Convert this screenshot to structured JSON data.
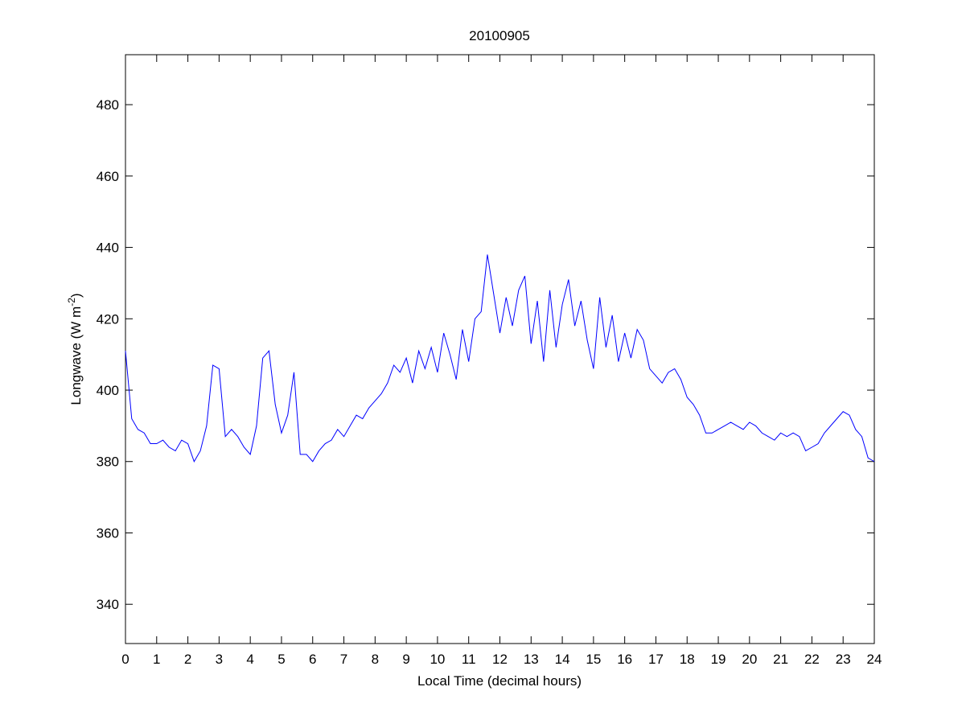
{
  "chart_data": {
    "type": "line",
    "title": "20100905",
    "xlabel": "Local Time (decimal hours)",
    "ylabel": [
      "Longwave (W m",
      "-2",
      ")"
    ],
    "x": [
      0,
      0.2,
      0.4,
      0.6,
      0.8,
      1,
      1.2,
      1.4,
      1.6,
      1.8,
      2,
      2.2,
      2.4,
      2.6,
      2.8,
      3,
      3.2,
      3.4,
      3.6,
      3.8,
      4,
      4.2,
      4.4,
      4.6,
      4.8,
      5,
      5.2,
      5.4,
      5.6,
      5.8,
      6,
      6.2,
      6.4,
      6.6,
      6.8,
      7,
      7.2,
      7.4,
      7.6,
      7.8,
      8,
      8.2,
      8.4,
      8.6,
      8.8,
      9,
      9.2,
      9.4,
      9.6,
      9.8,
      10,
      10.2,
      10.4,
      10.6,
      10.8,
      11,
      11.2,
      11.4,
      11.6,
      11.8,
      12,
      12.2,
      12.4,
      12.6,
      12.8,
      13,
      13.2,
      13.4,
      13.6,
      13.8,
      14,
      14.2,
      14.4,
      14.6,
      14.8,
      15,
      15.2,
      15.4,
      15.6,
      15.8,
      16,
      16.2,
      16.4,
      16.6,
      16.8,
      17,
      17.2,
      17.4,
      17.6,
      17.8,
      18,
      18.2,
      18.4,
      18.6,
      18.8,
      19,
      19.2,
      19.4,
      19.6,
      19.8,
      20,
      20.2,
      20.4,
      20.6,
      20.8,
      21,
      21.2,
      21.4,
      21.6,
      21.8,
      22,
      22.2,
      22.4,
      22.6,
      22.8,
      23,
      23.2,
      23.4,
      23.6,
      23.8,
      24
    ],
    "series": [
      {
        "name": "Longwave",
        "color": "#0000ff",
        "values": [
          411,
          392,
          389,
          388,
          385,
          385,
          386,
          384,
          383,
          386,
          385,
          380,
          383,
          390,
          407,
          406,
          387,
          389,
          387,
          384,
          382,
          390,
          409,
          411,
          396,
          388,
          393,
          405,
          382,
          382,
          380,
          383,
          385,
          386,
          389,
          387,
          390,
          393,
          392,
          395,
          397,
          399,
          402,
          407,
          405,
          409,
          402,
          411,
          406,
          412,
          405,
          416,
          410,
          403,
          417,
          408,
          420,
          422,
          438,
          427,
          416,
          426,
          418,
          428,
          432,
          413,
          425,
          408,
          428,
          412,
          424,
          431,
          418,
          425,
          414,
          406,
          426,
          412,
          421,
          408,
          416,
          409,
          417,
          414,
          406,
          404,
          402,
          405,
          406,
          403,
          398,
          396,
          393,
          388,
          388,
          389,
          390,
          391,
          390,
          389,
          391,
          390,
          388,
          387,
          386,
          388,
          387,
          388,
          387,
          383,
          384,
          385,
          388,
          390,
          392,
          394,
          393,
          389,
          387,
          381,
          380
        ]
      }
    ],
    "xlim": [
      0,
      24
    ],
    "xticks": [
      0,
      1,
      2,
      3,
      4,
      5,
      6,
      7,
      8,
      9,
      10,
      11,
      12,
      13,
      14,
      15,
      16,
      17,
      18,
      19,
      20,
      21,
      22,
      23,
      24
    ],
    "ylim": [
      329,
      494
    ],
    "yticks": [
      340,
      360,
      380,
      400,
      420,
      440,
      460,
      480
    ],
    "grid": false
  }
}
